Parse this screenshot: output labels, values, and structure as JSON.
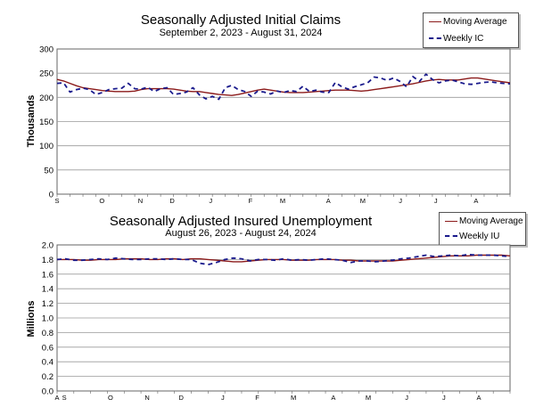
{
  "chart_data": [
    {
      "type": "line",
      "title": "Seasonally Adjusted Initial Claims",
      "subtitle": "September 2, 2023 - August 31, 2024",
      "ylabel": "Thousands",
      "ylim": [
        0,
        300
      ],
      "yticks": [
        "0",
        "50",
        "100",
        "150",
        "200",
        "250",
        "300"
      ],
      "month_ticks": [
        "S",
        "O",
        "N",
        "D",
        "J",
        "F",
        "M",
        "A",
        "M",
        "J",
        "J",
        "A"
      ],
      "grid": true,
      "legend_position": "top-right",
      "series": [
        {
          "name": "Moving Average",
          "color": "#8b1a1a",
          "style": "solid",
          "values": [
            237,
            234,
            229,
            224,
            220,
            218,
            216,
            214,
            213,
            212,
            212,
            212,
            213,
            216,
            218,
            218,
            218,
            218,
            217,
            215,
            213,
            212,
            212,
            210,
            208,
            206,
            205,
            204,
            206,
            209,
            212,
            215,
            217,
            215,
            213,
            211,
            210,
            210,
            210,
            211,
            212,
            213,
            214,
            215,
            215,
            215,
            214,
            213,
            214,
            216,
            218,
            220,
            222,
            224,
            226,
            228,
            231,
            234,
            236,
            237,
            236,
            236,
            236,
            238,
            240,
            240,
            238,
            236,
            234,
            232,
            230
          ]
        },
        {
          "name": "Weekly IC",
          "color": "#1a1a8c",
          "style": "dashed",
          "values": [
            229,
            230,
            211,
            216,
            219,
            216,
            206,
            210,
            216,
            218,
            219,
            229,
            218,
            217,
            221,
            212,
            218,
            220,
            206,
            208,
            211,
            220,
            205,
            197,
            202,
            196,
            220,
            225,
            216,
            212,
            202,
            213,
            211,
            207,
            213,
            210,
            214,
            212,
            223,
            212,
            215,
            211,
            210,
            231,
            222,
            217,
            222,
            226,
            230,
            242,
            240,
            235,
            240,
            233,
            222,
            243,
            233,
            248,
            237,
            230,
            234,
            236,
            232,
            228,
            227,
            229,
            231,
            232,
            230,
            229,
            228
          ]
        }
      ]
    },
    {
      "type": "line",
      "title": "Seasonally Adjusted Insured Unemployment",
      "subtitle": "August 26, 2023 - August 24, 2024",
      "ylabel": "Millions",
      "ylim": [
        0,
        2.0
      ],
      "yticks": [
        "0.0",
        "0.2",
        "0.4",
        "0.6",
        "0.8",
        "1.0",
        "1.2",
        "1.4",
        "1.6",
        "1.8",
        "2.0"
      ],
      "month_ticks": [
        "A",
        "S",
        "O",
        "N",
        "D",
        "J",
        "F",
        "M",
        "A",
        "M",
        "J",
        "J",
        "A"
      ],
      "grid": true,
      "legend_position": "top-right",
      "series": [
        {
          "name": "Moving Average",
          "color": "#8b1a1a",
          "style": "solid",
          "values": [
            1.8,
            1.8,
            1.8,
            1.79,
            1.79,
            1.8,
            1.8,
            1.8,
            1.81,
            1.81,
            1.81,
            1.8,
            1.8,
            1.81,
            1.81,
            1.8,
            1.81,
            1.81,
            1.8,
            1.79,
            1.78,
            1.77,
            1.77,
            1.78,
            1.79,
            1.8,
            1.8,
            1.8,
            1.79,
            1.79,
            1.79,
            1.8,
            1.8,
            1.8,
            1.79,
            1.79,
            1.78,
            1.78,
            1.78,
            1.78,
            1.78,
            1.79,
            1.8,
            1.81,
            1.82,
            1.83,
            1.84,
            1.85,
            1.85,
            1.85,
            1.86,
            1.86,
            1.86,
            1.86,
            1.85
          ]
        },
        {
          "name": "Weekly IU",
          "color": "#1a1a8c",
          "style": "dashed",
          "values": [
            1.8,
            1.81,
            1.79,
            1.79,
            1.8,
            1.81,
            1.8,
            1.82,
            1.81,
            1.8,
            1.8,
            1.81,
            1.81,
            1.8,
            1.81,
            1.8,
            1.8,
            1.75,
            1.73,
            1.76,
            1.8,
            1.82,
            1.81,
            1.78,
            1.8,
            1.8,
            1.79,
            1.81,
            1.79,
            1.8,
            1.79,
            1.8,
            1.81,
            1.8,
            1.79,
            1.76,
            1.78,
            1.78,
            1.77,
            1.78,
            1.79,
            1.81,
            1.82,
            1.84,
            1.86,
            1.84,
            1.85,
            1.86,
            1.85,
            1.87,
            1.86,
            1.86,
            1.86,
            1.85,
            1.84
          ]
        }
      ]
    }
  ]
}
